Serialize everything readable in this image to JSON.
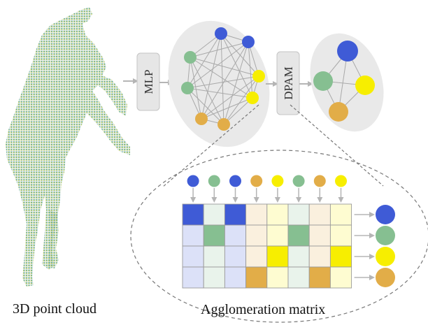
{
  "labels": {
    "point_cloud": "3D point cloud",
    "mlp": "MLP",
    "dpam": "DPAM",
    "agglomeration": "Agglomeration matrix"
  },
  "colors": {
    "blue": "#3f5bd6",
    "green": "#86bf91",
    "orange": "#e2ad48",
    "yellow": "#f7ee00",
    "graph_bg": "#e9e9e9",
    "edge": "#a9a9a9",
    "arrow": "#b5b5b5",
    "grid_line": "#9a9a9a"
  },
  "input_nodes": [
    "blue",
    "green",
    "blue",
    "orange",
    "yellow",
    "green",
    "orange",
    "yellow"
  ],
  "output_nodes": [
    "blue",
    "green",
    "yellow",
    "orange"
  ],
  "graph1_nodes": [
    "blue",
    "blue",
    "green",
    "green",
    "yellow",
    "yellow",
    "orange",
    "orange"
  ],
  "graph2_nodes": [
    "blue",
    "green",
    "yellow",
    "orange"
  ],
  "agglomeration_matrix": [
    [
      1,
      0,
      1,
      0,
      0,
      0,
      0,
      0
    ],
    [
      0,
      1,
      0,
      0,
      0,
      1,
      0,
      0
    ],
    [
      0,
      0,
      0,
      0,
      1,
      0,
      0,
      1
    ],
    [
      0,
      0,
      0,
      1,
      0,
      0,
      1,
      0
    ]
  ]
}
